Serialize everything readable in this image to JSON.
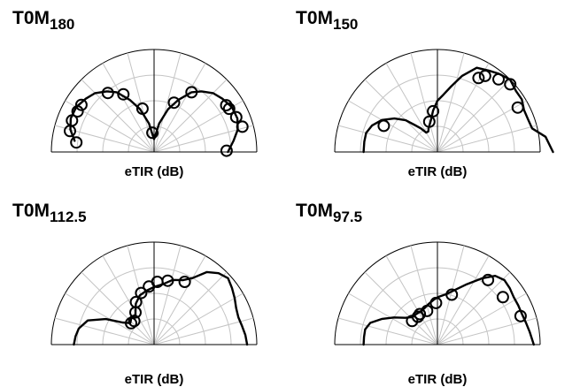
{
  "chart_data": [
    {
      "type": "polar-semicircle",
      "title_main": "T0M",
      "title_sub": "180",
      "xlabel": "eTIR (dB)",
      "angle_range_deg": [
        -90,
        90
      ],
      "angle_ticks": [
        "-90",
        "-75",
        "-60",
        "-45",
        "-30",
        "-15",
        "0",
        "15",
        "30",
        "45",
        "60",
        "75",
        "90"
      ],
      "radial_ticks": [
        "0",
        "4",
        "8",
        "12"
      ],
      "radial_range_db": [
        -4,
        12
      ],
      "curve": [
        [
          -82,
          8.5
        ],
        [
          -75,
          9.5
        ],
        [
          -68,
          10
        ],
        [
          -60,
          10
        ],
        [
          -52,
          9.5
        ],
        [
          -45,
          9
        ],
        [
          -38,
          8
        ],
        [
          -32,
          7
        ],
        [
          -25,
          5
        ],
        [
          -18,
          3
        ],
        [
          -10,
          0.5
        ],
        [
          -4,
          -1.5
        ],
        [
          0,
          -2
        ],
        [
          4,
          -1.5
        ],
        [
          10,
          0.5
        ],
        [
          18,
          3
        ],
        [
          25,
          5
        ],
        [
          32,
          7
        ],
        [
          38,
          8
        ],
        [
          45,
          9
        ],
        [
          52,
          9.5
        ],
        [
          60,
          10
        ],
        [
          68,
          10
        ],
        [
          75,
          9.5
        ],
        [
          82,
          8.5
        ],
        [
          90,
          7.5
        ]
      ],
      "points": [
        [
          -83,
          8.2
        ],
        [
          -76,
          9.5
        ],
        [
          -69,
          9.7
        ],
        [
          -62,
          9.5
        ],
        [
          -57,
          9.5
        ],
        [
          -38,
          7.7
        ],
        [
          -28,
          6.2
        ],
        [
          -15,
          3
        ],
        [
          -5,
          -1
        ],
        [
          22,
          4.3
        ],
        [
          32,
          7
        ],
        [
          57,
          9.4
        ],
        [
          60,
          9.5
        ],
        [
          67,
          9.9
        ],
        [
          74,
          10.3
        ],
        [
          89,
          7.3
        ]
      ]
    },
    {
      "type": "polar-semicircle",
      "title_main": "T0M",
      "title_sub": "150",
      "xlabel": "eTIR (dB)",
      "angle_range_deg": [
        -90,
        90
      ],
      "angle_ticks": [
        "-90",
        "-75",
        "-60",
        "-45",
        "-30",
        "-15",
        "0",
        "15",
        "30",
        "45",
        "60",
        "75",
        "90"
      ],
      "radial_ticks": [
        "0",
        "4",
        "8",
        "12"
      ],
      "radial_range_db": [
        -4,
        12
      ],
      "curve": [
        [
          -90,
          7.5
        ],
        [
          -82,
          7.5
        ],
        [
          -75,
          7.5
        ],
        [
          -68,
          7
        ],
        [
          -60,
          6
        ],
        [
          -52,
          4.5
        ],
        [
          -45,
          3
        ],
        [
          -40,
          1.5
        ],
        [
          -35,
          0.5
        ],
        [
          -30,
          -0.5
        ],
        [
          -24,
          -0.5
        ],
        [
          -20,
          0
        ],
        [
          -12,
          1
        ],
        [
          -6,
          2.5
        ],
        [
          0,
          4
        ],
        [
          6,
          5
        ],
        [
          12,
          6.5
        ],
        [
          18,
          8.5
        ],
        [
          25,
          10.5
        ],
        [
          32,
          11
        ],
        [
          38,
          11.5
        ],
        [
          45,
          12
        ],
        [
          52,
          11.5
        ],
        [
          58,
          11.5
        ],
        [
          64,
          11
        ],
        [
          70,
          11
        ],
        [
          76,
          11.2
        ],
        [
          82,
          13
        ],
        [
          90,
          14
        ]
      ],
      "points": [
        [
          -64,
          5.3
        ],
        [
          -15,
          0.9
        ],
        [
          -6,
          2.4
        ],
        [
          29,
          9.2
        ],
        [
          32,
          10
        ],
        [
          40,
          10.8
        ],
        [
          47,
          11.5
        ],
        [
          61,
          10.3
        ]
      ]
    },
    {
      "type": "polar-semicircle",
      "title_main": "T0M",
      "title_sub": "112.5",
      "xlabel": "eTIR (dB)",
      "angle_range_deg": [
        -90,
        90
      ],
      "angle_ticks": [
        "-90",
        "-75",
        "-60",
        "-45",
        "-30",
        "-15",
        "0",
        "15",
        "30",
        "45",
        "60",
        "75",
        "90"
      ],
      "radial_ticks": [
        "0",
        "4",
        "8",
        "12"
      ],
      "radial_range_db": [
        -4,
        12
      ],
      "curve": [
        [
          -90,
          8.5
        ],
        [
          -84,
          8.3
        ],
        [
          -78,
          8
        ],
        [
          -70,
          7
        ],
        [
          -62,
          4.5
        ],
        [
          -55,
          2
        ],
        [
          -48,
          1
        ],
        [
          -40,
          1.5
        ],
        [
          -32,
          1.5
        ],
        [
          -24,
          3
        ],
        [
          -16,
          4
        ],
        [
          -8,
          4.5
        ],
        [
          0,
          5
        ],
        [
          8,
          5.5
        ],
        [
          16,
          6.5
        ],
        [
          24,
          7
        ],
        [
          30,
          8
        ],
        [
          36,
          10
        ],
        [
          42,
          11
        ],
        [
          48,
          11.5
        ],
        [
          54,
          11
        ],
        [
          60,
          10.5
        ],
        [
          66,
          10
        ],
        [
          72,
          9.8
        ],
        [
          78,
          10
        ],
        [
          84,
          10.3
        ],
        [
          90,
          10.5
        ]
      ],
      "points": [
        [
          -47,
          0.9
        ],
        [
          -40,
          0.8
        ],
        [
          -30,
          1.8
        ],
        [
          -23,
          3.2
        ],
        [
          -14,
          4.3
        ],
        [
          -5,
          5.1
        ],
        [
          3,
          5.8
        ],
        [
          12,
          6.2
        ],
        [
          26,
          6.9
        ]
      ]
    },
    {
      "type": "polar-semicircle",
      "title_main": "T0M",
      "title_sub": "97.5",
      "xlabel": "eTIR (dB)",
      "angle_range_deg": [
        -90,
        90
      ],
      "angle_ticks": [
        "-90",
        "-75",
        "-60",
        "-45",
        "-30",
        "-15",
        "0",
        "15",
        "30",
        "45",
        "60",
        "75",
        "90"
      ],
      "radial_ticks": [
        "0",
        "4",
        "8",
        "12"
      ],
      "radial_range_db": [
        -4,
        12
      ],
      "curve": [
        [
          -90,
          7.5
        ],
        [
          -84,
          7.5
        ],
        [
          -78,
          7.5
        ],
        [
          -72,
          7
        ],
        [
          -65,
          5.5
        ],
        [
          -58,
          4
        ],
        [
          -50,
          2.5
        ],
        [
          -42,
          1.8
        ],
        [
          -35,
          1.8
        ],
        [
          -28,
          1.8
        ],
        [
          -20,
          2
        ],
        [
          -12,
          2.5
        ],
        [
          -5,
          3
        ],
        [
          2,
          3.5
        ],
        [
          10,
          4
        ],
        [
          18,
          5
        ],
        [
          26,
          6.5
        ],
        [
          34,
          8.5
        ],
        [
          40,
          10
        ],
        [
          46,
          10.5
        ],
        [
          52,
          10.3
        ],
        [
          58,
          10
        ],
        [
          64,
          10
        ],
        [
          70,
          10
        ],
        [
          76,
          10.2
        ],
        [
          82,
          10.5
        ],
        [
          90,
          11
        ]
      ],
      "points": [
        [
          -47,
          1.4
        ],
        [
          -35,
          1.3
        ],
        [
          -30,
          1.5
        ],
        [
          -17,
          1.5
        ],
        [
          -2,
          2.5
        ],
        [
          16,
          4.1
        ],
        [
          38,
          8.8
        ],
        [
          54,
          8.6
        ],
        [
          71,
          9.7
        ]
      ]
    }
  ]
}
